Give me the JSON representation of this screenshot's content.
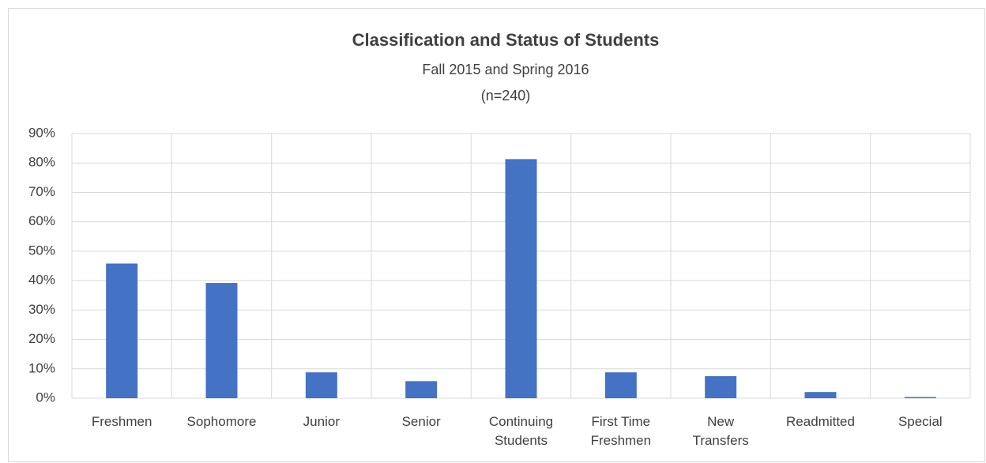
{
  "chart_data": {
    "type": "bar",
    "title": "Classification and Status of Students",
    "subtitle": "Fall 2015 and Spring 2016",
    "note": "(n=240)",
    "categories": [
      "Freshmen",
      "Sophomore",
      "Junior",
      "Senior",
      "Continuing Students",
      "First Time Freshmen",
      "New Transfers",
      "Readmitted",
      "Special"
    ],
    "values": [
      45.8,
      39.2,
      8.8,
      5.8,
      81.3,
      8.8,
      7.5,
      2.1,
      0.4
    ],
    "color": "#4472c4",
    "ylim": [
      0,
      90
    ],
    "yticks": [
      {
        "value": 0,
        "label": "0%"
      },
      {
        "value": 10,
        "label": "10%"
      },
      {
        "value": 20,
        "label": "20%"
      },
      {
        "value": 30,
        "label": "30%"
      },
      {
        "value": 40,
        "label": "40%"
      },
      {
        "value": 50,
        "label": "50%"
      },
      {
        "value": 60,
        "label": "60%"
      },
      {
        "value": 70,
        "label": "70%"
      },
      {
        "value": 80,
        "label": "80%"
      },
      {
        "value": 90,
        "label": "90%"
      }
    ],
    "grid": true
  }
}
